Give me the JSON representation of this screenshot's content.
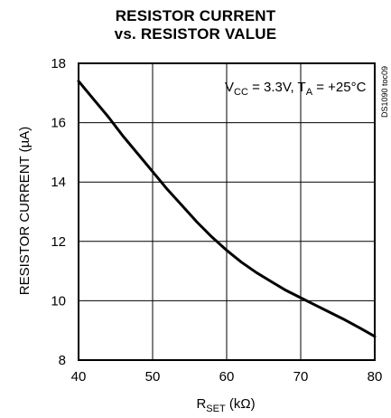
{
  "chart_data": {
    "type": "line",
    "title_line1": "RESISTOR CURRENT",
    "title_line2": "vs. RESISTOR VALUE",
    "xlabel_main": "R",
    "xlabel_sub": "SET",
    "xlabel_unit": " (kΩ)",
    "ylabel": "RESISTOR CURRENT (µA)",
    "xlim": [
      40,
      80
    ],
    "ylim": [
      8,
      18
    ],
    "x_ticks": [
      40,
      50,
      60,
      70,
      80
    ],
    "y_ticks": [
      8,
      10,
      12,
      14,
      16,
      18
    ],
    "grid": true,
    "annotation": {
      "v": "V",
      "v_sub": "CC",
      "v_rest": " = 3.3V, T",
      "t_sub": "A",
      "t_rest": " = +25°C"
    },
    "side_code": "DS1090 toc09",
    "series": [
      {
        "x": [
          40,
          42,
          44,
          46,
          48,
          50,
          52,
          54,
          56,
          58,
          60,
          62,
          64,
          66,
          68,
          70,
          72,
          74,
          76,
          78,
          80
        ],
        "values": [
          17.4,
          16.8,
          16.2,
          15.55,
          14.95,
          14.35,
          13.75,
          13.2,
          12.65,
          12.15,
          11.7,
          11.3,
          10.95,
          10.65,
          10.35,
          10.1,
          9.85,
          9.6,
          9.35,
          9.08,
          8.8
        ]
      }
    ],
    "colors": {
      "line": "#000000",
      "grid": "#000000",
      "background": "#ffffff"
    }
  }
}
